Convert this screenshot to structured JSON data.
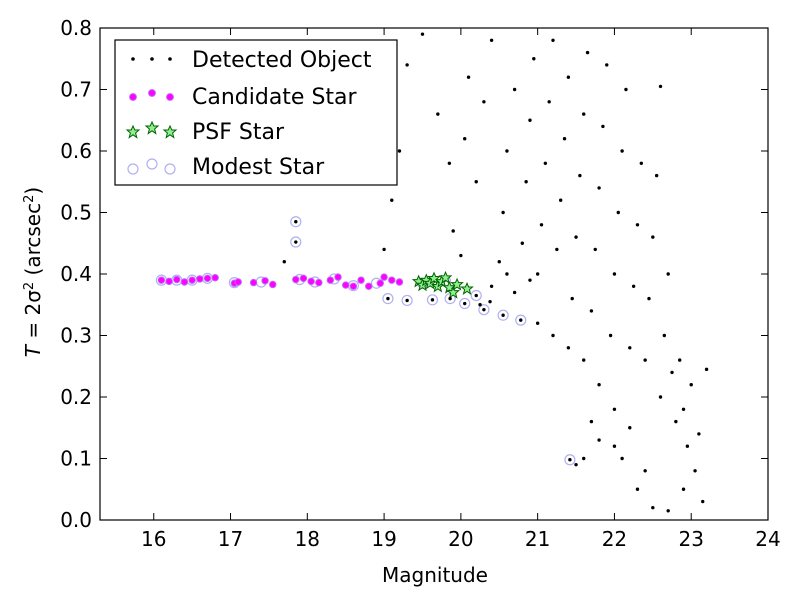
{
  "chart_data": {
    "type": "scatter",
    "title": "",
    "xlabel": "Magnitude",
    "ylabel": {
      "prefix": "T",
      "middle": " = 2σ",
      "sup": "2",
      "units_open": " (arcsec",
      "units_sup": "2",
      "units_close": ")"
    },
    "xlim": [
      15.3,
      24.0
    ],
    "ylim": [
      0.0,
      0.8
    ],
    "x_ticks": [
      16,
      17,
      18,
      19,
      20,
      21,
      22,
      23,
      24
    ],
    "y_ticks": [
      0.0,
      0.1,
      0.2,
      0.3,
      0.4,
      0.5,
      0.6,
      0.7,
      0.8
    ],
    "grid": false,
    "legend_position": "top-left",
    "series": [
      {
        "name": "Detected Object",
        "marker": "dot",
        "color": "#000000",
        "points": [
          [
            17.7,
            0.42
          ],
          [
            17.85,
            0.485
          ],
          [
            17.85,
            0.452
          ],
          [
            19.05,
            0.36
          ],
          [
            19.3,
            0.357
          ],
          [
            19.63,
            0.358
          ],
          [
            19.86,
            0.36
          ],
          [
            20.05,
            0.352
          ],
          [
            20.2,
            0.365
          ],
          [
            20.25,
            0.35
          ],
          [
            20.3,
            0.342
          ],
          [
            20.38,
            0.355
          ],
          [
            20.55,
            0.333
          ],
          [
            20.78,
            0.325
          ],
          [
            21.42,
            0.098
          ],
          [
            19.0,
            0.44
          ],
          [
            19.1,
            0.52
          ],
          [
            19.2,
            0.6
          ],
          [
            19.05,
            0.68
          ],
          [
            19.3,
            0.74
          ],
          [
            19.5,
            0.79
          ],
          [
            19.7,
            0.66
          ],
          [
            19.85,
            0.58
          ],
          [
            19.9,
            0.47
          ],
          [
            20.0,
            0.43
          ],
          [
            20.05,
            0.62
          ],
          [
            20.1,
            0.72
          ],
          [
            20.2,
            0.55
          ],
          [
            20.3,
            0.68
          ],
          [
            20.4,
            0.78
          ],
          [
            20.5,
            0.42
          ],
          [
            20.55,
            0.5
          ],
          [
            20.6,
            0.6
          ],
          [
            20.7,
            0.7
          ],
          [
            20.8,
            0.45
          ],
          [
            20.85,
            0.55
          ],
          [
            20.9,
            0.65
          ],
          [
            20.95,
            0.75
          ],
          [
            21.0,
            0.4
          ],
          [
            21.05,
            0.48
          ],
          [
            21.1,
            0.58
          ],
          [
            21.15,
            0.68
          ],
          [
            21.2,
            0.78
          ],
          [
            21.25,
            0.44
          ],
          [
            21.3,
            0.52
          ],
          [
            21.35,
            0.62
          ],
          [
            21.4,
            0.72
          ],
          [
            21.45,
            0.36
          ],
          [
            21.5,
            0.46
          ],
          [
            21.55,
            0.56
          ],
          [
            21.6,
            0.66
          ],
          [
            21.65,
            0.76
          ],
          [
            21.7,
            0.34
          ],
          [
            21.75,
            0.44
          ],
          [
            21.8,
            0.54
          ],
          [
            21.85,
            0.64
          ],
          [
            21.9,
            0.74
          ],
          [
            21.95,
            0.3
          ],
          [
            22.0,
            0.4
          ],
          [
            22.05,
            0.5
          ],
          [
            22.1,
            0.6
          ],
          [
            22.15,
            0.7
          ],
          [
            22.2,
            0.28
          ],
          [
            22.25,
            0.38
          ],
          [
            22.3,
            0.48
          ],
          [
            22.35,
            0.58
          ],
          [
            22.4,
            0.26
          ],
          [
            22.45,
            0.36
          ],
          [
            22.5,
            0.46
          ],
          [
            22.55,
            0.56
          ],
          [
            22.6,
            0.2
          ],
          [
            22.65,
            0.3
          ],
          [
            22.7,
            0.4
          ],
          [
            22.75,
            0.24
          ],
          [
            22.8,
            0.16
          ],
          [
            22.85,
            0.26
          ],
          [
            22.9,
            0.18
          ],
          [
            22.95,
            0.12
          ],
          [
            23.0,
            0.22
          ],
          [
            23.05,
            0.08
          ],
          [
            23.1,
            0.14
          ],
          [
            23.15,
            0.03
          ],
          [
            23.2,
            0.245
          ],
          [
            22.6,
            0.705
          ],
          [
            22.1,
            0.1
          ],
          [
            22.3,
            0.05
          ],
          [
            22.5,
            0.02
          ],
          [
            22.7,
            0.015
          ],
          [
            22.9,
            0.05
          ],
          [
            21.6,
            0.1
          ],
          [
            21.7,
            0.16
          ],
          [
            21.8,
            0.13
          ],
          [
            21.5,
            0.09
          ],
          [
            22.0,
            0.12
          ],
          [
            22.2,
            0.15
          ],
          [
            22.4,
            0.08
          ],
          [
            20.4,
            0.38
          ],
          [
            20.6,
            0.4
          ],
          [
            20.7,
            0.37
          ],
          [
            20.9,
            0.39
          ],
          [
            21.0,
            0.32
          ],
          [
            21.2,
            0.3
          ],
          [
            21.4,
            0.28
          ],
          [
            21.6,
            0.26
          ],
          [
            21.8,
            0.22
          ],
          [
            22.0,
            0.18
          ]
        ]
      },
      {
        "name": "Candidate Star",
        "marker": "circle",
        "color": "#ff00ff",
        "points": [
          [
            16.1,
            0.39
          ],
          [
            16.2,
            0.388
          ],
          [
            16.3,
            0.391
          ],
          [
            16.4,
            0.387
          ],
          [
            16.5,
            0.39
          ],
          [
            16.6,
            0.392
          ],
          [
            16.7,
            0.393
          ],
          [
            16.8,
            0.394
          ],
          [
            17.05,
            0.385
          ],
          [
            17.1,
            0.387
          ],
          [
            17.3,
            0.386
          ],
          [
            17.45,
            0.389
          ],
          [
            17.55,
            0.383
          ],
          [
            17.85,
            0.391
          ],
          [
            17.95,
            0.393
          ],
          [
            18.05,
            0.388
          ],
          [
            18.15,
            0.386
          ],
          [
            18.3,
            0.39
          ],
          [
            18.4,
            0.395
          ],
          [
            18.5,
            0.382
          ],
          [
            18.6,
            0.38
          ],
          [
            18.7,
            0.39
          ],
          [
            18.8,
            0.38
          ],
          [
            18.95,
            0.385
          ],
          [
            19.0,
            0.395
          ],
          [
            19.1,
            0.39
          ],
          [
            19.2,
            0.387
          ]
        ]
      },
      {
        "name": "PSF Star",
        "marker": "star",
        "color": "#1a8c1a",
        "points": [
          [
            19.45,
            0.388
          ],
          [
            19.5,
            0.382
          ],
          [
            19.55,
            0.39
          ],
          [
            19.6,
            0.385
          ],
          [
            19.65,
            0.393
          ],
          [
            19.7,
            0.38
          ],
          [
            19.75,
            0.388
          ],
          [
            19.8,
            0.394
          ],
          [
            19.85,
            0.378
          ],
          [
            19.9,
            0.37
          ],
          [
            19.95,
            0.383
          ],
          [
            20.08,
            0.376
          ]
        ]
      },
      {
        "name": "Modest Star",
        "marker": "open-circle",
        "color": "#b0b0f0",
        "points": [
          [
            16.1,
            0.39
          ],
          [
            16.3,
            0.39
          ],
          [
            16.5,
            0.39
          ],
          [
            16.7,
            0.393
          ],
          [
            17.05,
            0.386
          ],
          [
            17.4,
            0.387
          ],
          [
            17.85,
            0.485
          ],
          [
            17.85,
            0.452
          ],
          [
            17.9,
            0.391
          ],
          [
            18.1,
            0.387
          ],
          [
            18.35,
            0.392
          ],
          [
            18.6,
            0.381
          ],
          [
            18.9,
            0.385
          ],
          [
            19.05,
            0.36
          ],
          [
            19.3,
            0.357
          ],
          [
            19.63,
            0.358
          ],
          [
            19.86,
            0.36
          ],
          [
            20.05,
            0.352
          ],
          [
            20.2,
            0.365
          ],
          [
            20.3,
            0.342
          ],
          [
            20.55,
            0.333
          ],
          [
            20.78,
            0.325
          ],
          [
            21.42,
            0.098
          ],
          [
            19.5,
            0.385
          ],
          [
            19.8,
            0.388
          ]
        ]
      }
    ]
  }
}
